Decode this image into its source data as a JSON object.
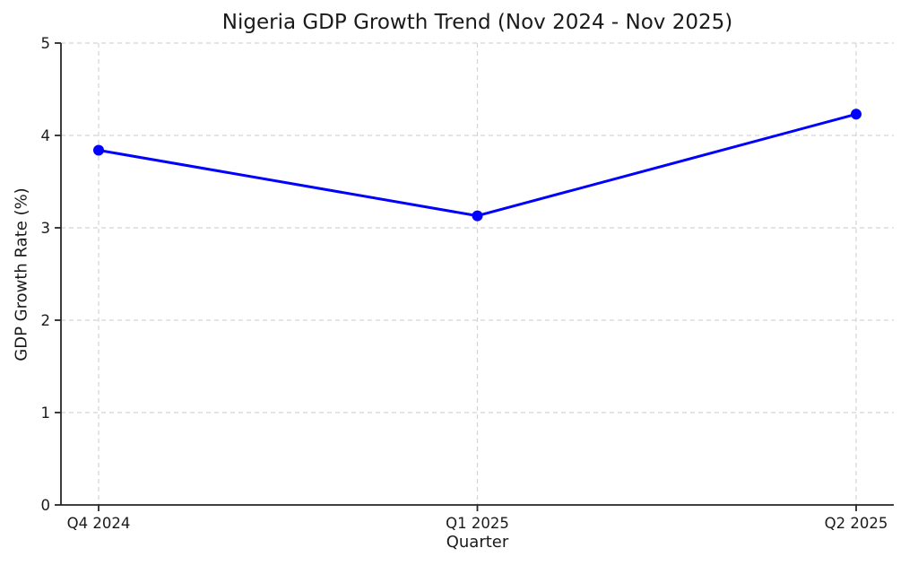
{
  "chart_data": {
    "type": "line",
    "title": "Nigeria GDP Growth Trend (Nov 2024 - Nov 2025)",
    "xlabel": "Quarter",
    "ylabel": "GDP Growth Rate (%)",
    "categories": [
      "Q4 2024",
      "Q1 2025",
      "Q2 2025"
    ],
    "series": [
      {
        "name": "GDP Growth Rate",
        "values": [
          3.84,
          3.13,
          4.23
        ]
      }
    ],
    "ylim": [
      0,
      5
    ],
    "yticks": [
      0,
      1,
      2,
      3,
      4,
      5
    ],
    "grid": true,
    "grid_style": "dashed",
    "legend_position": "none",
    "marker": "circle",
    "colors": {
      "line": "#0000ff",
      "grid": "#d4d4d4",
      "axis": "#262626",
      "text": "#1a1a1a",
      "background": "#ffffff"
    }
  }
}
